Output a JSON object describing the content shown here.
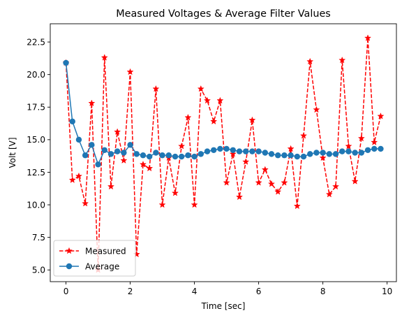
{
  "chart_data": {
    "type": "line",
    "title": "Measured Voltages & Average Filter Values",
    "xlabel": "Time [sec]",
    "ylabel": "Volt [V]",
    "xlim": [
      -0.49,
      10.29
    ],
    "ylim": [
      4.1,
      23.9
    ],
    "xticks": [
      0,
      2,
      4,
      6,
      8,
      10
    ],
    "xtick_labels": [
      "0",
      "2",
      "4",
      "6",
      "8",
      "10"
    ],
    "yticks": [
      5.0,
      7.5,
      10.0,
      12.5,
      15.0,
      17.5,
      20.0,
      22.5
    ],
    "ytick_labels": [
      "5.0",
      "7.5",
      "10.0",
      "12.5",
      "15.0",
      "17.5",
      "20.0",
      "22.5"
    ],
    "grid": false,
    "legend_position": "lower-left",
    "x": [
      0.0,
      0.2,
      0.4,
      0.6,
      0.8,
      1.0,
      1.2,
      1.4,
      1.6,
      1.8,
      2.0,
      2.2,
      2.4,
      2.6,
      2.8,
      3.0,
      3.2,
      3.4,
      3.6,
      3.8,
      4.0,
      4.2,
      4.4,
      4.6,
      4.8,
      5.0,
      5.2,
      5.4,
      5.6,
      5.8,
      6.0,
      6.2,
      6.4,
      6.6,
      6.8,
      7.0,
      7.2,
      7.4,
      7.6,
      7.8,
      8.0,
      8.2,
      8.4,
      8.6,
      8.8,
      9.0,
      9.2,
      9.4,
      9.6,
      9.8
    ],
    "series": [
      {
        "name": "Measured",
        "color": "#ff0000",
        "style": "dashed",
        "marker": "star",
        "values": [
          20.9,
          11.9,
          12.2,
          10.1,
          17.8,
          5.0,
          21.3,
          11.4,
          15.6,
          13.4,
          20.2,
          6.2,
          13.1,
          12.8,
          18.9,
          10.0,
          13.6,
          10.9,
          14.5,
          16.7,
          10.0,
          18.9,
          18.0,
          16.4,
          18.0,
          11.7,
          13.9,
          10.6,
          13.3,
          16.5,
          11.7,
          12.7,
          11.6,
          11.0,
          11.7,
          14.3,
          9.9,
          15.3,
          21.0,
          17.3,
          13.6,
          10.8,
          11.4,
          21.1,
          14.5,
          11.8,
          15.1,
          22.8,
          14.8,
          16.8
        ]
      },
      {
        "name": "Average",
        "color": "#1f77b4",
        "style": "solid",
        "marker": "circle",
        "values": [
          20.9,
          16.4,
          15.0,
          13.8,
          14.6,
          13.1,
          14.2,
          13.9,
          14.1,
          14.0,
          14.6,
          13.9,
          13.8,
          13.7,
          14.0,
          13.8,
          13.8,
          13.7,
          13.7,
          13.8,
          13.7,
          13.9,
          14.1,
          14.2,
          14.3,
          14.3,
          14.2,
          14.1,
          14.1,
          14.1,
          14.1,
          14.0,
          13.9,
          13.8,
          13.8,
          13.8,
          13.7,
          13.7,
          13.9,
          14.0,
          14.0,
          13.9,
          13.9,
          14.1,
          14.1,
          14.0,
          14.0,
          14.2,
          14.3,
          14.3
        ]
      }
    ]
  }
}
